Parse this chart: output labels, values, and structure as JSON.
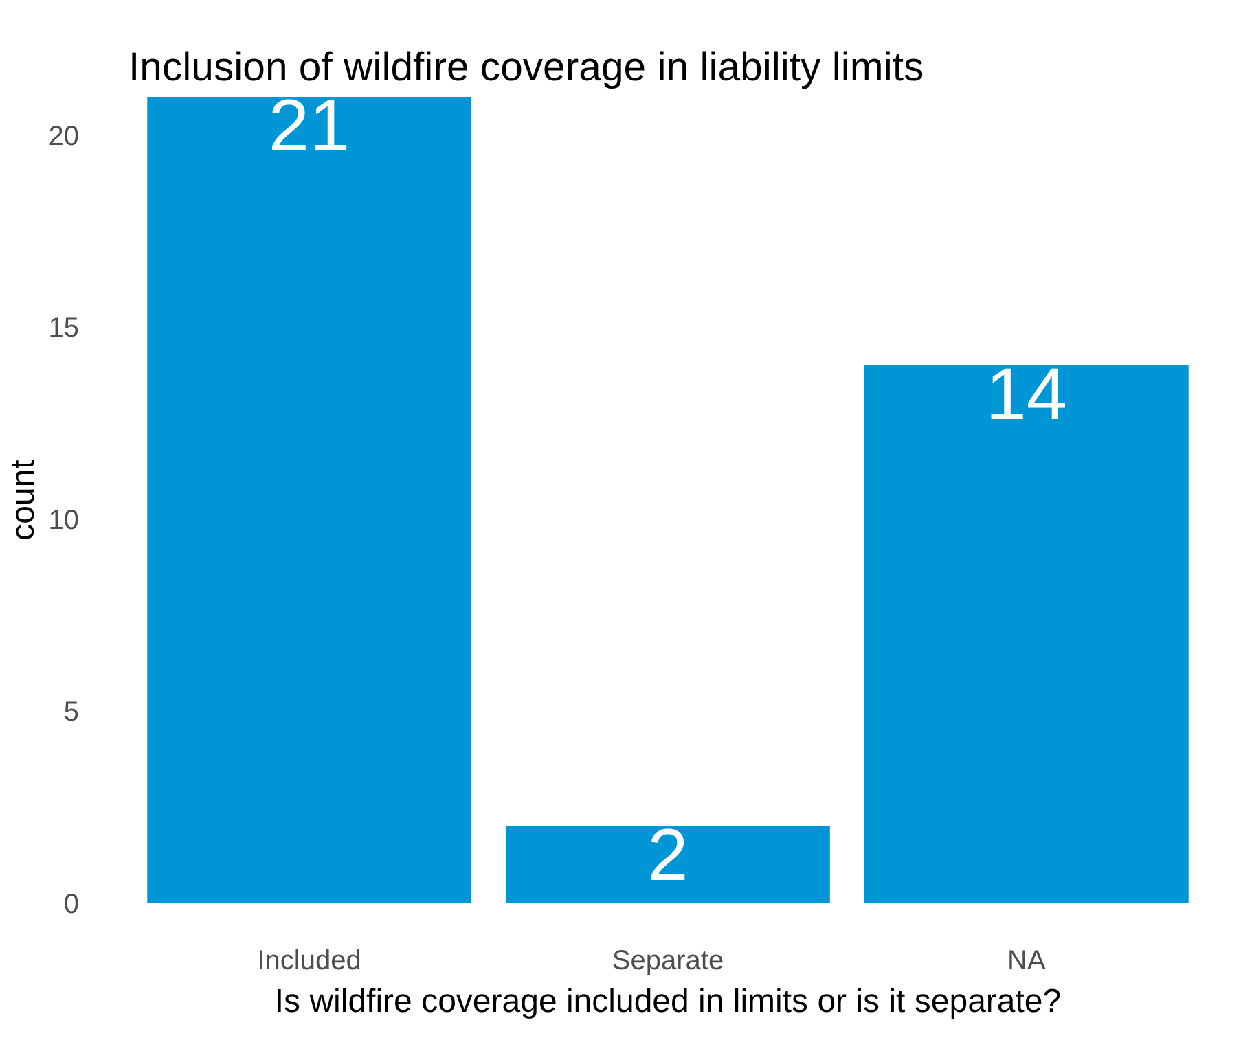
{
  "chart_data": {
    "type": "bar",
    "title": "Inclusion of wildfire coverage in liability limits",
    "xlabel": "Is wildfire coverage included in limits or is it separate?",
    "ylabel": "count",
    "categories": [
      "Included",
      "Separate",
      "NA"
    ],
    "values": [
      21,
      2,
      14
    ],
    "color": "#0096d6",
    "ylim": [
      0,
      21
    ],
    "yticks": [
      0,
      5,
      10,
      15,
      20
    ],
    "data_labels": true
  }
}
